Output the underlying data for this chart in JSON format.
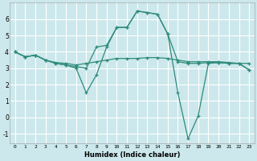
{
  "background_color": "#cce8ec",
  "grid_color": "#ffffff",
  "line_color": "#2e8b7a",
  "x_label": "Humidex (Indice chaleur)",
  "ylim": [
    -1.6,
    7.0
  ],
  "xlim": [
    -0.5,
    23.5
  ],
  "yticks": [
    -1,
    0,
    1,
    2,
    3,
    4,
    5,
    6
  ],
  "xticks": [
    0,
    1,
    2,
    3,
    4,
    5,
    6,
    7,
    8,
    9,
    10,
    11,
    12,
    13,
    14,
    15,
    16,
    17,
    18,
    19,
    20,
    21,
    22,
    23
  ],
  "series": [
    {
      "x": [
        0,
        1,
        2,
        3,
        4,
        5,
        6,
        7,
        8,
        9,
        10,
        11,
        12,
        13,
        14,
        15,
        16,
        17,
        18,
        19,
        20,
        21,
        22,
        23
      ],
      "y": [
        4.0,
        3.7,
        3.8,
        3.5,
        3.35,
        3.3,
        3.2,
        3.3,
        3.4,
        3.5,
        3.6,
        3.6,
        3.6,
        3.65,
        3.65,
        3.6,
        3.5,
        3.4,
        3.4,
        3.4,
        3.4,
        3.35,
        3.3,
        3.3
      ]
    },
    {
      "x": [
        0,
        1,
        2,
        3,
        4,
        5,
        6,
        7,
        8,
        9,
        10,
        11,
        12,
        13,
        14,
        15,
        16,
        17,
        18,
        19,
        20,
        21,
        22,
        23
      ],
      "y": [
        4.0,
        3.7,
        3.8,
        3.5,
        3.3,
        3.2,
        3.0,
        1.5,
        2.6,
        4.3,
        5.5,
        5.5,
        6.5,
        6.4,
        6.3,
        5.1,
        1.5,
        -1.3,
        0.1,
        3.3,
        3.35,
        3.3,
        3.3,
        2.9
      ]
    },
    {
      "x": [
        0,
        1,
        2,
        3,
        4,
        5,
        6,
        7,
        8,
        9,
        10,
        11,
        12,
        13,
        14,
        15,
        16,
        17,
        18,
        19,
        20,
        21,
        22,
        23
      ],
      "y": [
        4.0,
        3.7,
        3.8,
        3.5,
        3.3,
        3.2,
        3.1,
        3.0,
        4.3,
        4.4,
        5.5,
        5.5,
        6.5,
        6.4,
        6.3,
        5.1,
        3.4,
        3.3,
        3.3,
        3.35,
        3.35,
        3.3,
        3.3,
        2.9
      ]
    }
  ]
}
